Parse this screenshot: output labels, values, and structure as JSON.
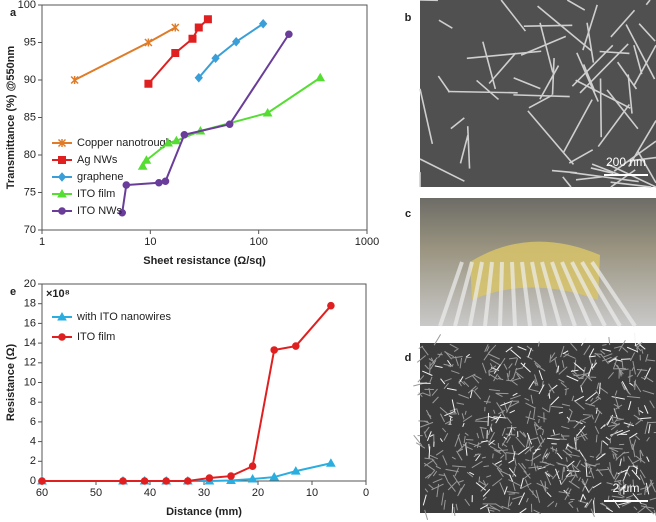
{
  "chart_data": [
    {
      "type": "line",
      "panel": "a",
      "xlabel": "Sheet resistance (Ω/sq)",
      "ylabel": "Transmittance (%) @550nm",
      "xscale": "log",
      "xlim": [
        1,
        1000
      ],
      "xticks": [
        1,
        10,
        100,
        1000
      ],
      "ylim": [
        70,
        100
      ],
      "yticks": [
        70,
        75,
        80,
        85,
        90,
        95,
        100
      ],
      "legend": "lower left",
      "series": [
        {
          "name": "Copper nanotrough",
          "color": "#e07b28",
          "marker": "x",
          "x": [
            2,
            9.6,
            17
          ],
          "values": [
            90,
            95,
            97
          ]
        },
        {
          "name": "Ag NWs",
          "color": "#e02020",
          "marker": "square",
          "x": [
            9.6,
            17,
            24.5,
            28,
            34
          ],
          "values": [
            89.5,
            93.6,
            95.5,
            97,
            98.1
          ]
        },
        {
          "name": "graphene",
          "color": "#3a9fd8",
          "marker": "diamond",
          "x": [
            28,
            40,
            62,
            110
          ],
          "values": [
            90.3,
            92.9,
            95.1,
            97.5
          ]
        },
        {
          "name": "ITO film",
          "color": "#55dd33",
          "marker": "triangle",
          "x": [
            8.5,
            9.2,
            14.6,
            17.4,
            29,
            121,
            370
          ],
          "values": [
            78.5,
            79.3,
            81.6,
            81.9,
            83.2,
            85.6,
            90.3
          ]
        },
        {
          "name": "ITO NWs",
          "color": "#6a3d9a",
          "marker": "circle",
          "x": [
            5.5,
            6,
            12,
            13.8,
            20.6,
            54,
            190
          ],
          "values": [
            72.3,
            76,
            76.3,
            76.5,
            82.7,
            84.1,
            96.1
          ]
        }
      ]
    },
    {
      "type": "line",
      "panel": "e",
      "xlabel": "Distance (mm)",
      "ylabel": "Resistance (Ω)",
      "annotation": "×10⁸",
      "xlim": [
        60,
        0
      ],
      "xticks": [
        60,
        50,
        40,
        30,
        20,
        10,
        0
      ],
      "ylim": [
        0,
        20
      ],
      "yticks": [
        0,
        2,
        4,
        6,
        8,
        10,
        12,
        14,
        16,
        18,
        20
      ],
      "legend": "upper left",
      "x": [
        60,
        45,
        41,
        37,
        33,
        29,
        25,
        21,
        17,
        13,
        6.5
      ],
      "series": [
        {
          "name": "with ITO nanowires",
          "color": "#2aaee0",
          "marker": "triangle",
          "values": [
            0,
            0,
            0,
            0,
            0,
            0,
            0.05,
            0.2,
            0.4,
            1.0,
            1.8
          ]
        },
        {
          "name": "ITO film",
          "color": "#e02020",
          "marker": "circle",
          "values": [
            0,
            0,
            0,
            0,
            0,
            0.3,
            0.5,
            1.5,
            13.3,
            13.7,
            17.8
          ]
        }
      ]
    }
  ],
  "images": [
    {
      "panel": "b",
      "scale_bar": "200 nm"
    },
    {
      "panel": "c"
    },
    {
      "panel": "d",
      "scale_bar": "2 μm"
    }
  ]
}
